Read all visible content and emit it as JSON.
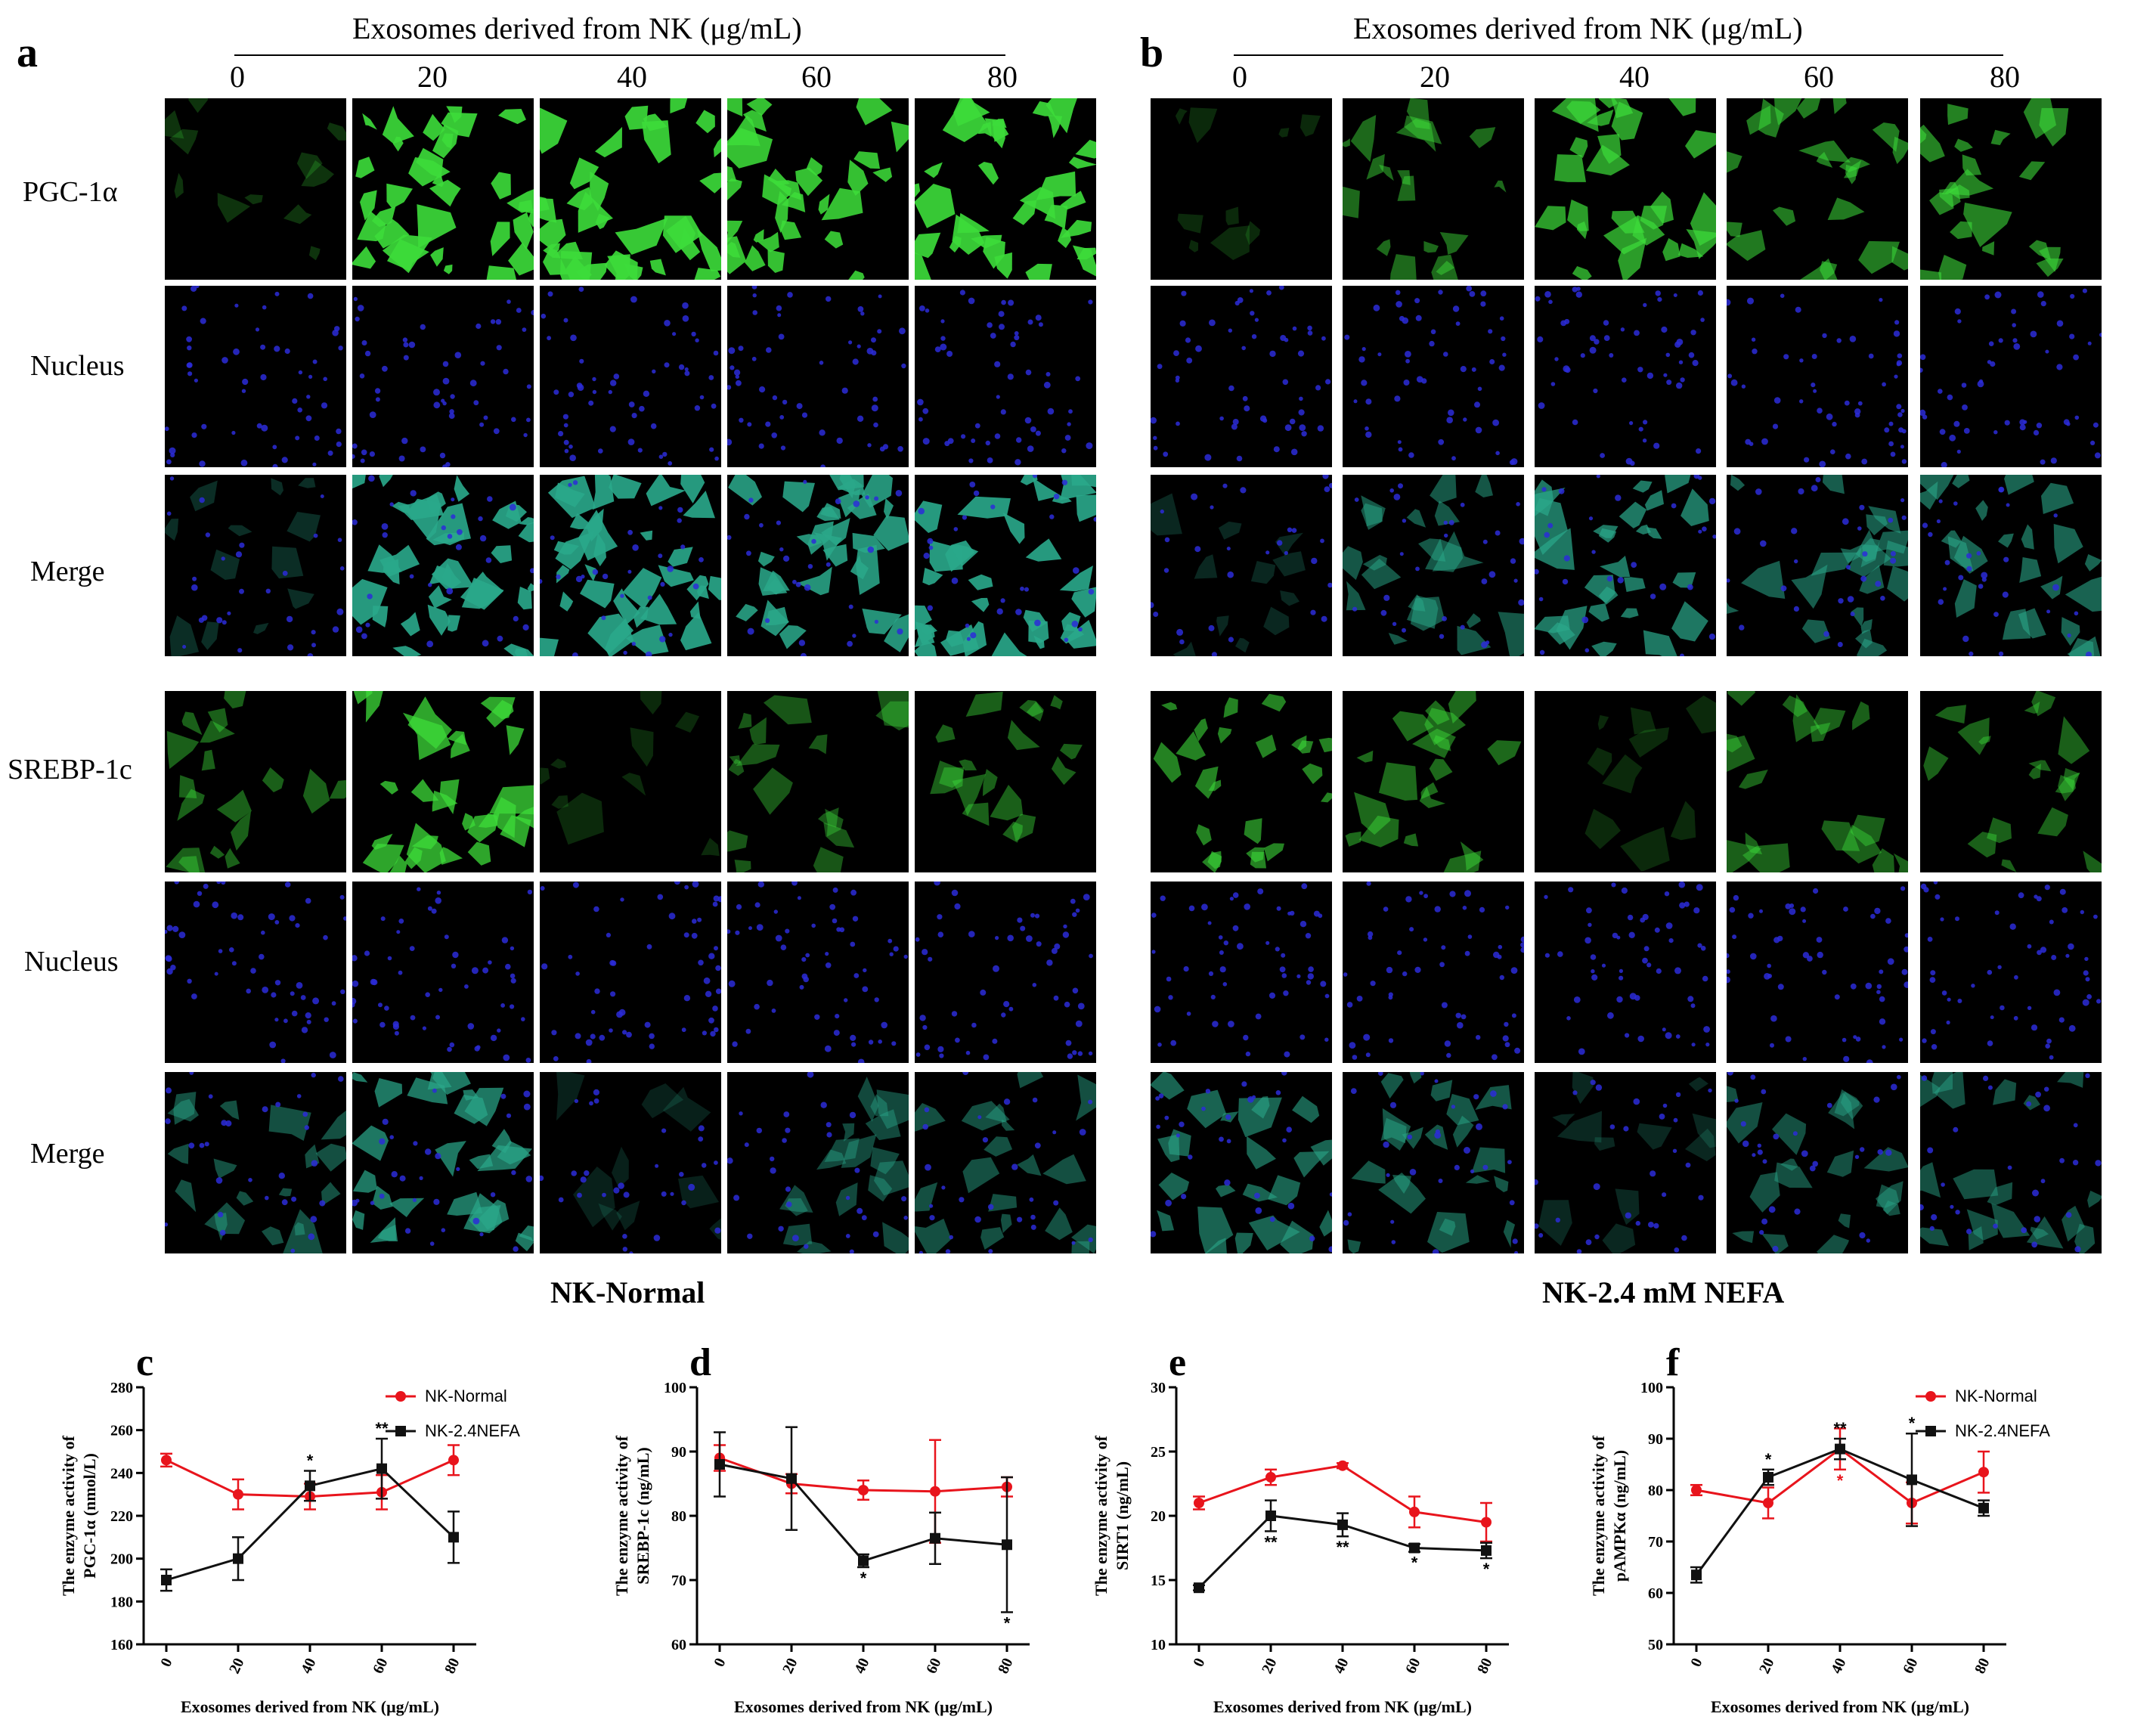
{
  "colors": {
    "normal": "#e8141c",
    "nefa": "#111111",
    "green_signal": "#3ddc3a",
    "blue_nucleus": "#2c2cd8",
    "merge_teal": "#2aa88a"
  },
  "top": {
    "panel_a": {
      "letter": "a",
      "header": "Exosomes derived from NK (μg/mL)",
      "concentrations": [
        "0",
        "20",
        "40",
        "60",
        "80"
      ],
      "group_label": "NK-Normal",
      "row_labels": [
        "PGC-1α",
        "Nucleus",
        "Merge",
        "SREBP-1c",
        "Nucleus",
        "Merge"
      ]
    },
    "panel_b": {
      "letter": "b",
      "header": "Exosomes derived from NK (μg/mL)",
      "concentrations": [
        "0",
        "20",
        "40",
        "60",
        "80"
      ],
      "group_label": "NK-2.4 mM NEFA"
    }
  },
  "chart_data": [
    {
      "letter": "c",
      "type": "line",
      "ylabel_line1": "The enzyme activity of",
      "ylabel_line2": "PGC-1α (nmol/L)",
      "xlabel": "Exosomes derived from NK (μg/mL)",
      "x": [
        "0",
        "20",
        "40",
        "60",
        "80"
      ],
      "ylim": [
        160,
        280
      ],
      "yticks": [
        160,
        180,
        200,
        220,
        240,
        260,
        280
      ],
      "legend": [
        "NK-Normal",
        "NK-2.4NEFA"
      ],
      "series": [
        {
          "name": "NK-Normal",
          "values": [
            246,
            230,
            229,
            231,
            246
          ],
          "err": [
            3,
            7,
            6,
            8,
            7
          ]
        },
        {
          "name": "NK-2.4NEFA",
          "values": [
            190,
            200,
            234,
            242,
            210
          ],
          "err": [
            5,
            10,
            7,
            14,
            12
          ]
        }
      ],
      "stars_black": [
        "",
        "",
        "*",
        "**",
        ""
      ],
      "stars_red": [
        "",
        "",
        "",
        "",
        ""
      ]
    },
    {
      "letter": "d",
      "type": "line",
      "ylabel_line1": "The enzyme activity of",
      "ylabel_line2": "SREBP-1c (ng/mL)",
      "xlabel": "Exosomes derived from NK (μg/mL)",
      "x": [
        "0",
        "20",
        "40",
        "60",
        "80"
      ],
      "ylim": [
        60,
        100
      ],
      "yticks": [
        60,
        70,
        80,
        90,
        100
      ],
      "series": [
        {
          "name": "NK-Normal",
          "values": [
            89,
            85,
            84,
            83.8,
            84.5
          ],
          "err": [
            2,
            1.5,
            1.5,
            8,
            1.5
          ]
        },
        {
          "name": "NK-2.4NEFA",
          "values": [
            88,
            85.8,
            73,
            76.5,
            75.5
          ],
          "err": [
            5,
            8,
            1,
            4,
            10.5
          ]
        }
      ],
      "stars_black": [
        "",
        "",
        "*",
        "",
        "*"
      ],
      "stars_red": [
        "",
        "",
        "",
        "",
        ""
      ]
    },
    {
      "letter": "e",
      "type": "line",
      "ylabel_line1": "The enzyme activity of",
      "ylabel_line2": "SIRT1 (ng/mL)",
      "xlabel": "Exosomes derived from NK (μg/mL)",
      "x": [
        "0",
        "20",
        "40",
        "60",
        "80"
      ],
      "ylim": [
        10,
        30
      ],
      "yticks": [
        10,
        15,
        20,
        25,
        30
      ],
      "series": [
        {
          "name": "NK-Normal",
          "values": [
            21,
            23,
            23.9,
            20.3,
            19.5
          ],
          "err": [
            0.5,
            0.6,
            0.2,
            1.2,
            1.5
          ]
        },
        {
          "name": "NK-2.4NEFA",
          "values": [
            14.4,
            20,
            19.3,
            17.5,
            17.3
          ],
          "err": [
            0.2,
            1.2,
            0.9,
            0.3,
            0.6
          ]
        }
      ],
      "stars_black": [
        "",
        "**",
        "**",
        "*",
        "*"
      ],
      "stars_red": [
        "",
        "",
        "",
        "",
        ""
      ]
    },
    {
      "letter": "f",
      "type": "line",
      "ylabel_line1": "The enzyme activity of",
      "ylabel_line2": "pAMPKα (ng/mL)",
      "xlabel": "Exosomes derived from NK (μg/mL)",
      "x": [
        "0",
        "20",
        "40",
        "60",
        "80"
      ],
      "ylim": [
        50,
        100
      ],
      "yticks": [
        50,
        60,
        70,
        80,
        90,
        100
      ],
      "legend": [
        "NK-Normal",
        "NK-2.4NEFA"
      ],
      "series": [
        {
          "name": "NK-Normal",
          "values": [
            80,
            77.5,
            88,
            77.5,
            83.5
          ],
          "err": [
            1,
            3,
            4,
            4,
            4
          ]
        },
        {
          "name": "NK-2.4NEFA",
          "values": [
            63.5,
            82.5,
            88,
            82,
            76.5
          ],
          "err": [
            1.5,
            1.5,
            2,
            9,
            1.5
          ]
        }
      ],
      "stars_black": [
        "",
        "*",
        "**",
        "*",
        ""
      ],
      "stars_red": [
        "",
        "",
        "*",
        "",
        ""
      ]
    }
  ]
}
